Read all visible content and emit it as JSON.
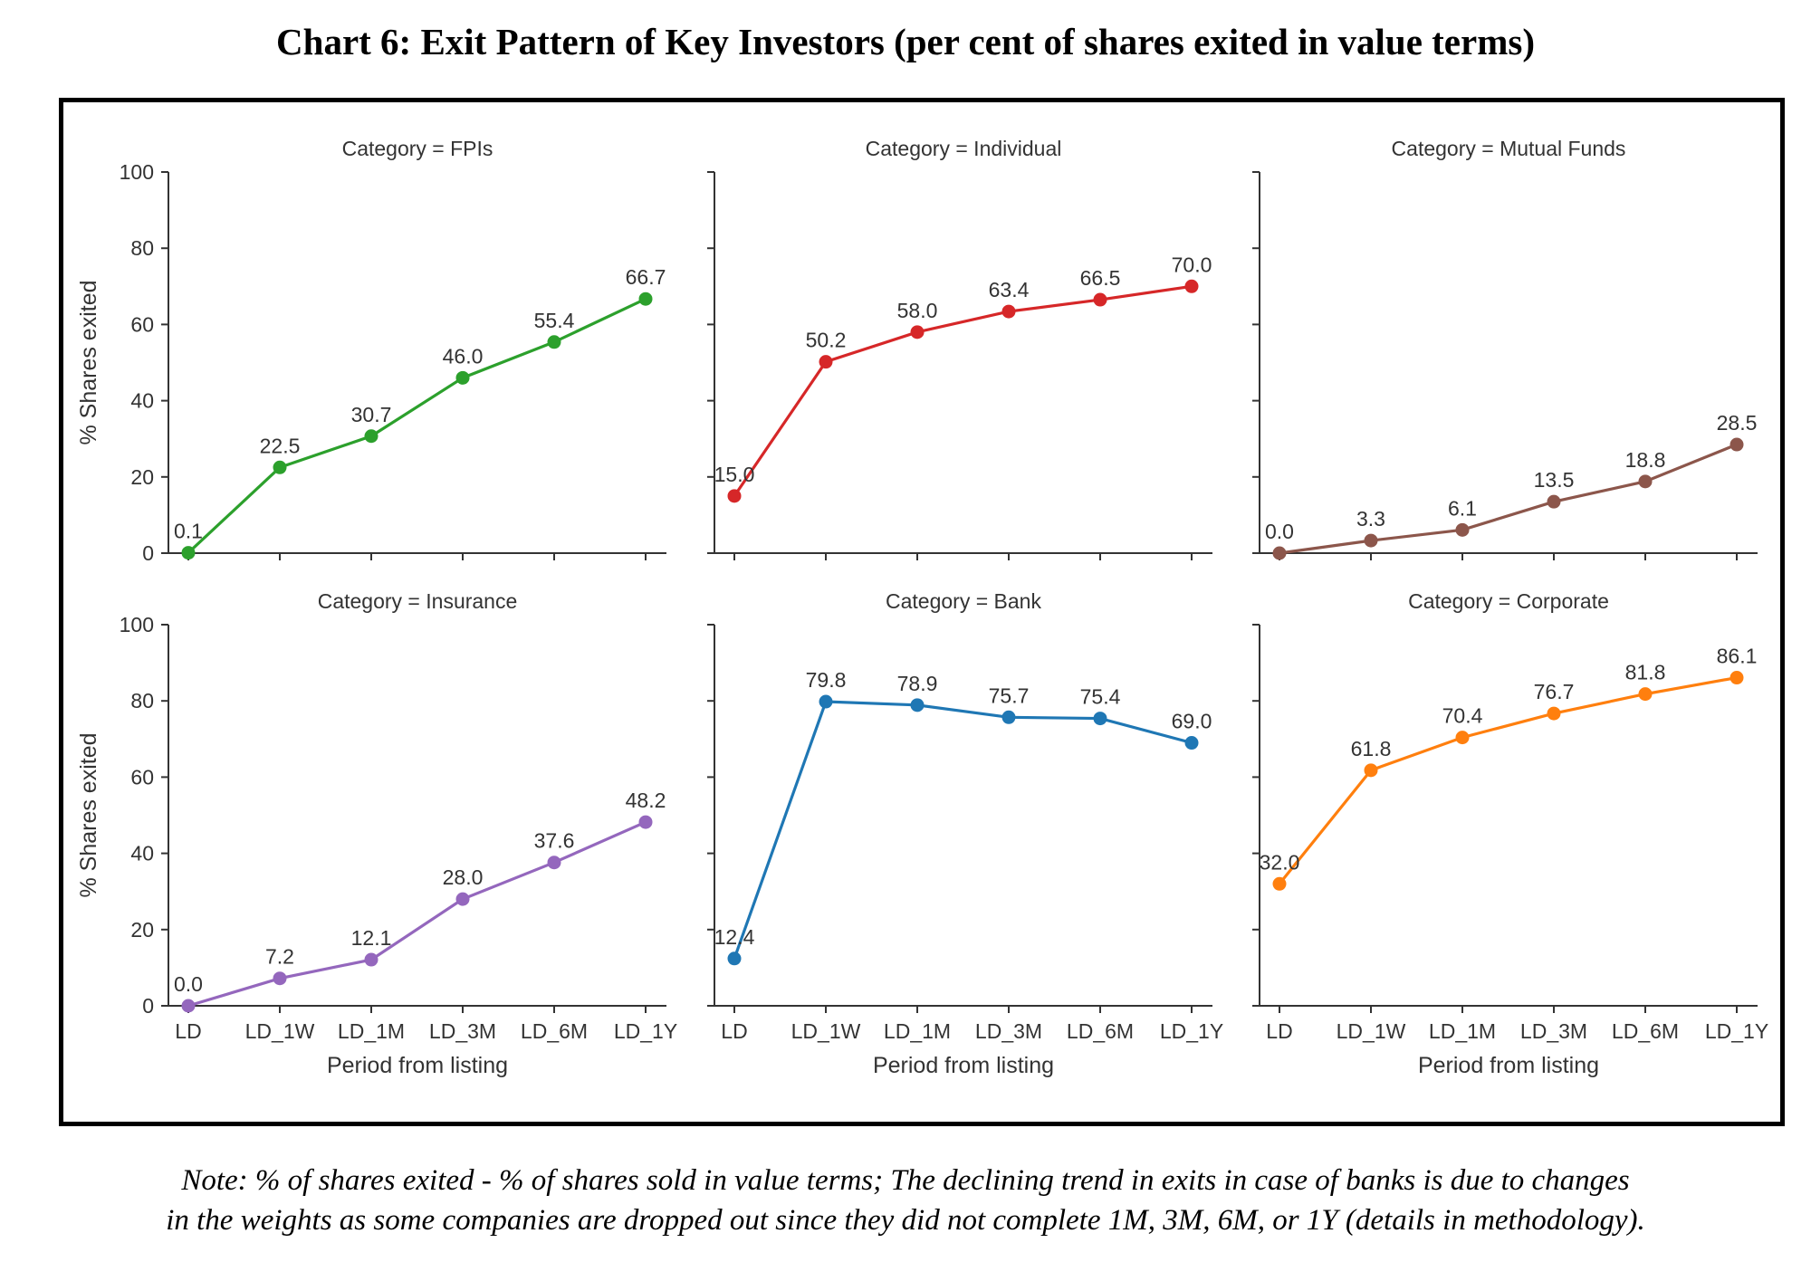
{
  "title": "Chart 6: Exit Pattern of Key Investors (per cent of shares exited in value terms)",
  "note": {
    "line1": "Note: % of shares exited -  % of shares sold in value terms; The declining trend in exits in case of banks is due to changes",
    "line2": "in the weights as some companies are dropped out since they did not complete 1M, 3M, 6M, or 1Y (details in methodology)."
  },
  "chart_data": {
    "type": "line",
    "layout": "facet-grid 2x3",
    "x": [
      "LD",
      "LD_1W",
      "LD_1M",
      "LD_3M",
      "LD_6M",
      "LD_1Y"
    ],
    "xlabel": "Period from listing",
    "ylabel": "% Shares exited",
    "ylim": [
      0,
      100
    ],
    "yticks": [
      0,
      20,
      40,
      60,
      80,
      100
    ],
    "grid": false,
    "panels": [
      {
        "title": "Category = FPIs",
        "color": "#2ca02c",
        "values": [
          0.1,
          22.5,
          30.7,
          46.0,
          55.4,
          66.7
        ],
        "labels": [
          "0.1",
          "22.5",
          "30.7",
          "46.0",
          "55.4",
          "66.7"
        ]
      },
      {
        "title": "Category = Individual",
        "color": "#d62728",
        "values": [
          15.0,
          50.2,
          58.0,
          63.4,
          66.5,
          70.0
        ],
        "labels": [
          "15.0",
          "50.2",
          "58.0",
          "63.4",
          "66.5",
          "70.0"
        ]
      },
      {
        "title": "Category = Mutual Funds",
        "color": "#8c564b",
        "values": [
          0.0,
          3.3,
          6.1,
          13.5,
          18.8,
          28.5
        ],
        "labels": [
          "0.0",
          "3.3",
          "6.1",
          "13.5",
          "18.8",
          "28.5"
        ]
      },
      {
        "title": "Category = Insurance",
        "color": "#9467bd",
        "values": [
          0.0,
          7.2,
          12.1,
          28.0,
          37.6,
          48.2
        ],
        "labels": [
          "0.0",
          "7.2",
          "12.1",
          "28.0",
          "37.6",
          "48.2"
        ]
      },
      {
        "title": "Category = Bank",
        "color": "#1f77b4",
        "values": [
          12.4,
          79.8,
          78.9,
          75.7,
          75.4,
          69.0
        ],
        "labels": [
          "12.4",
          "79.8",
          "78.9",
          "75.7",
          "75.4",
          "69.0"
        ]
      },
      {
        "title": "Category = Corporate",
        "color": "#ff7f0e",
        "values": [
          32.0,
          61.8,
          70.4,
          76.7,
          81.8,
          86.1
        ],
        "labels": [
          "32.0",
          "61.8",
          "70.4",
          "76.7",
          "81.8",
          "86.1"
        ]
      }
    ]
  }
}
